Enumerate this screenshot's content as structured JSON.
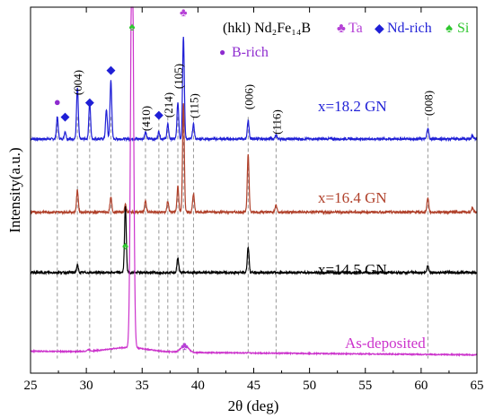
{
  "chart_data": {
    "type": "line",
    "xlabel": "2θ (deg)",
    "ylabel": "Intensity(a.u.)",
    "xlim": [
      25,
      65
    ],
    "x_ticks": [
      "25",
      "30",
      "35",
      "40",
      "45",
      "50",
      "55",
      "60",
      "65"
    ],
    "y_ticks_labeled": false,
    "grid": false,
    "legend": {
      "placement": "top-right",
      "hkl_label": "(hkl) Nd₂Fe₁₄B",
      "entries": [
        {
          "symbol": "♣",
          "name": "Ta",
          "color": "#b541d6"
        },
        {
          "symbol": "◆",
          "name": "Nd-rich",
          "color": "#1f1fd6"
        },
        {
          "symbol": "♠",
          "name": "Si",
          "color": "#2fc72f"
        },
        {
          "symbol": "●",
          "name": "B-rich",
          "color": "#8e2bcf"
        }
      ]
    },
    "series": [
      {
        "name": "x=18.2 GN",
        "color": "#1f1fd6",
        "baseline": 0.64,
        "peaks": [
          [
            27.4,
            0.06
          ],
          [
            28.1,
            0.02
          ],
          [
            29.2,
            0.14
          ],
          [
            30.3,
            0.1
          ],
          [
            31.8,
            0.08
          ],
          [
            32.2,
            0.16
          ],
          [
            35.3,
            0.02
          ],
          [
            36.5,
            0.02
          ],
          [
            37.3,
            0.04
          ],
          [
            38.2,
            0.1
          ],
          [
            38.7,
            0.28
          ],
          [
            39.6,
            0.04
          ],
          [
            44.5,
            0.05
          ],
          [
            47.0,
            0.01
          ],
          [
            60.6,
            0.03
          ],
          [
            64.6,
            0.01
          ]
        ]
      },
      {
        "name": "x=16.4 GN",
        "color": "#b0412b",
        "baseline": 0.44,
        "peaks": [
          [
            29.2,
            0.06
          ],
          [
            32.2,
            0.04
          ],
          [
            33.5,
            0.02
          ],
          [
            35.3,
            0.03
          ],
          [
            37.3,
            0.03
          ],
          [
            38.2,
            0.07
          ],
          [
            38.7,
            0.3
          ],
          [
            39.6,
            0.05
          ],
          [
            44.5,
            0.16
          ],
          [
            47.0,
            0.02
          ],
          [
            60.6,
            0.04
          ],
          [
            64.6,
            0.01
          ]
        ]
      },
      {
        "name": "x=14.5 GN",
        "color": "#000000",
        "baseline": 0.275,
        "peaks": [
          [
            29.2,
            0.02
          ],
          [
            33.5,
            0.18
          ],
          [
            38.2,
            0.04
          ],
          [
            44.5,
            0.07
          ],
          [
            60.6,
            0.02
          ]
        ]
      },
      {
        "name": "As-deposited",
        "color": "#cc33cc",
        "baseline": 0.06,
        "peaks": [
          [
            34.1,
            1.2
          ],
          [
            38.8,
            0.02
          ],
          [
            30.2,
            0.004
          ]
        ]
      }
    ],
    "peak_labels": [
      {
        "x": 29.2,
        "text": "(004)"
      },
      {
        "x": 35.3,
        "text": "(410)"
      },
      {
        "x": 37.3,
        "text": "(214)"
      },
      {
        "x": 38.2,
        "text": "(105)"
      },
      {
        "x": 39.6,
        "text": "(115)"
      },
      {
        "x": 44.5,
        "text": "(006)"
      },
      {
        "x": 47.0,
        "text": "(116)"
      },
      {
        "x": 60.6,
        "text": "(008)"
      }
    ],
    "markers": [
      {
        "x": 27.4,
        "symbol": "●",
        "color": "#8e2bcf"
      },
      {
        "x": 28.1,
        "symbol": "◆",
        "color": "#1f1fd6"
      },
      {
        "x": 30.3,
        "symbol": "◆",
        "color": "#1f1fd6"
      },
      {
        "x": 32.2,
        "symbol": "◆",
        "color": "#1f1fd6"
      },
      {
        "x": 36.5,
        "symbol": "◆",
        "color": "#1f1fd6"
      },
      {
        "x": 38.7,
        "symbol": "♣",
        "color": "#b541d6"
      },
      {
        "x": 34.1,
        "symbol": "♠",
        "color": "#2fc72f"
      },
      {
        "x": 33.5,
        "symbol": "♠",
        "color": "#2fc72f"
      },
      {
        "x": 38.8,
        "symbol": "♣",
        "color": "#b541d6"
      }
    ],
    "dashed_guides_x": [
      27.4,
      29.2,
      30.3,
      32.2,
      35.3,
      36.5,
      37.3,
      38.2,
      38.7,
      39.6,
      44.5,
      47.0,
      60.6
    ],
    "series_labels": [
      "x=18.2 GN",
      "x=16.4 GN",
      "x=14.5 GN",
      "As-deposited"
    ]
  }
}
